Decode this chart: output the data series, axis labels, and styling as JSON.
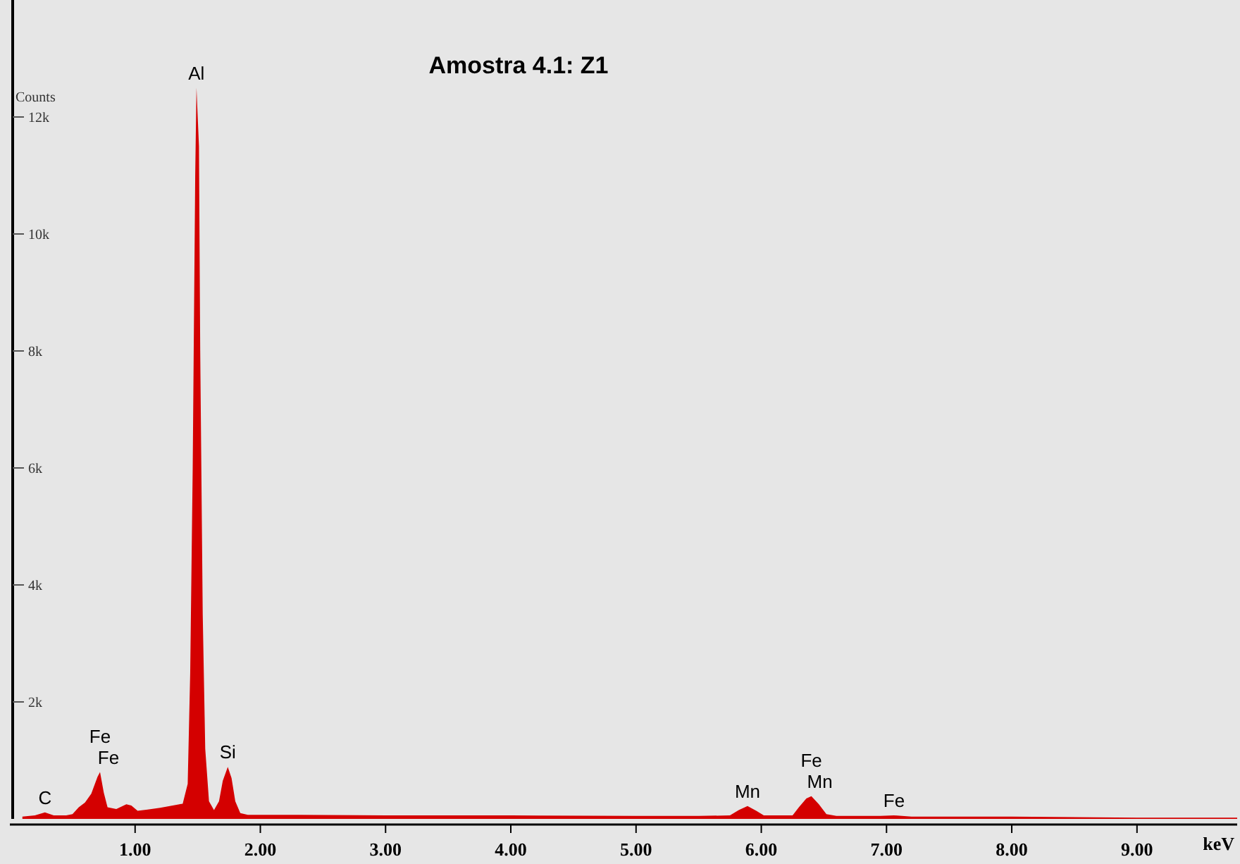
{
  "chart_data": {
    "type": "area",
    "title": "Amostra 4.1: Z1",
    "xlabel": "keV",
    "ylabel": "Counts",
    "x": [
      0.1,
      0.2,
      0.28,
      0.35,
      0.45,
      0.5,
      0.55,
      0.6,
      0.65,
      0.7,
      0.72,
      0.75,
      0.78,
      0.85,
      0.93,
      0.97,
      1.02,
      1.1,
      1.2,
      1.3,
      1.38,
      1.42,
      1.44,
      1.46,
      1.48,
      1.49,
      1.51,
      1.52,
      1.54,
      1.56,
      1.59,
      1.63,
      1.67,
      1.7,
      1.74,
      1.77,
      1.8,
      1.84,
      1.9,
      2.3,
      3.0,
      4.0,
      5.0,
      5.5,
      5.75,
      5.82,
      5.89,
      5.96,
      6.02,
      6.25,
      6.3,
      6.36,
      6.4,
      6.46,
      6.52,
      6.6,
      6.95,
      7.06,
      7.2,
      8.0,
      9.0,
      9.8
    ],
    "series": [
      {
        "color": "#d40000",
        "values": [
          40,
          60,
          110,
          60,
          60,
          80,
          200,
          280,
          430,
          720,
          800,
          450,
          200,
          170,
          250,
          230,
          140,
          160,
          190,
          230,
          260,
          600,
          2500,
          6000,
          11000,
          12500,
          11500,
          8000,
          3500,
          1200,
          300,
          150,
          300,
          650,
          890,
          700,
          300,
          100,
          70,
          70,
          60,
          60,
          50,
          50,
          60,
          150,
          220,
          140,
          60,
          60,
          200,
          350,
          390,
          250,
          80,
          50,
          50,
          60,
          40,
          40,
          20,
          20
        ]
      }
    ],
    "xlim": [
      0,
      9.8
    ],
    "ylim": [
      0,
      14000
    ],
    "xticks": [
      {
        "value": 1,
        "label": "1.00"
      },
      {
        "value": 2,
        "label": "2.00"
      },
      {
        "value": 3,
        "label": "3.00"
      },
      {
        "value": 4,
        "label": "4.00"
      },
      {
        "value": 5,
        "label": "5.00"
      },
      {
        "value": 6,
        "label": "6.00"
      },
      {
        "value": 7,
        "label": "7.00"
      },
      {
        "value": 8,
        "label": "8.00"
      },
      {
        "value": 9,
        "label": "9.00"
      }
    ],
    "yticks": [
      {
        "value": 2000,
        "label": "2k"
      },
      {
        "value": 4000,
        "label": "4k"
      },
      {
        "value": 6000,
        "label": "6k"
      },
      {
        "value": 8000,
        "label": "8k"
      },
      {
        "value": 10000,
        "label": "10k"
      },
      {
        "value": 12000,
        "label": "12k"
      }
    ],
    "annotations": [
      {
        "text": "C",
        "x": 0.28,
        "y": 110
      },
      {
        "text": "Fe",
        "x": 0.72,
        "y": 800
      },
      {
        "text": "Fe",
        "x": 0.72,
        "y": 800
      },
      {
        "text": "Al",
        "x": 1.49,
        "y": 12500
      },
      {
        "text": "Si",
        "x": 1.74,
        "y": 890
      },
      {
        "text": "Mn",
        "x": 5.89,
        "y": 220
      },
      {
        "text": "Fe",
        "x": 6.4,
        "y": 390
      },
      {
        "text": "Mn",
        "x": 6.4,
        "y": 390
      },
      {
        "text": "Fe",
        "x": 7.06,
        "y": 60
      }
    ]
  }
}
